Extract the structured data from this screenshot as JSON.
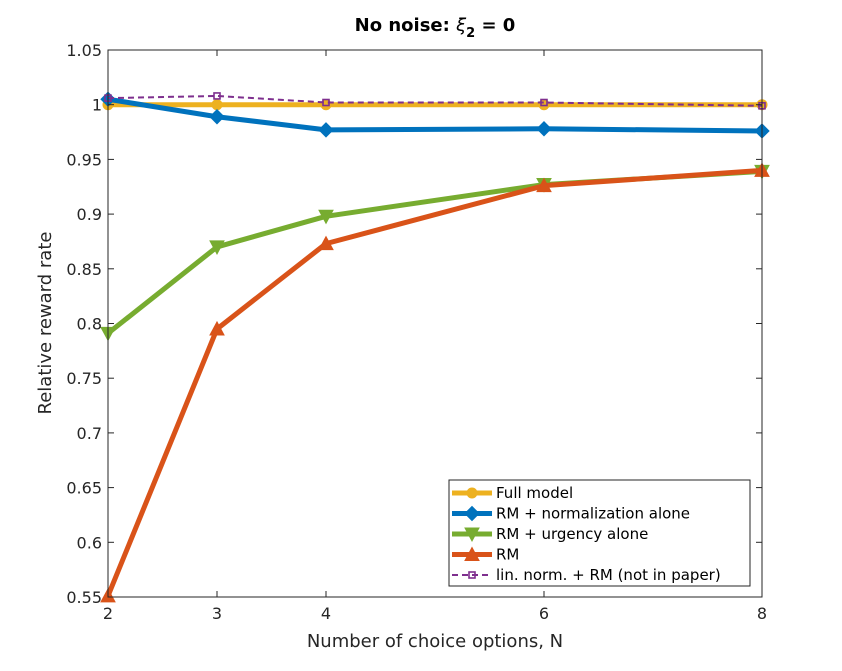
{
  "chart_data": {
    "type": "line",
    "title_prefix": "No noise: ",
    "title_symbol": "ξ",
    "title_subscript": "2",
    "title_suffix": " = 0",
    "xlabel": "Number of choice options, N",
    "ylabel": "Relative reward rate",
    "x": [
      2,
      3,
      4,
      6,
      8
    ],
    "xlim": [
      2,
      8
    ],
    "ylim": [
      0.55,
      1.05
    ],
    "xticks": [
      "2",
      "3",
      "4",
      "6",
      "8"
    ],
    "yticks": [
      "0.55",
      "0.6",
      "0.65",
      "0.7",
      "0.75",
      "0.8",
      "0.85",
      "0.9",
      "0.95",
      "1",
      "1.05"
    ],
    "legend_position": "bottom-right",
    "grid": false,
    "series": [
      {
        "name": "Full model",
        "color": "#EDB120",
        "marker": "circle",
        "style": "solid",
        "values": [
          1.0,
          1.0,
          1.0,
          1.0,
          1.0
        ]
      },
      {
        "name": "RM + normalization alone",
        "color": "#0072BD",
        "marker": "diamond",
        "style": "solid",
        "values": [
          1.005,
          0.989,
          0.977,
          0.978,
          0.976
        ]
      },
      {
        "name": "RM + urgency alone",
        "color": "#77AC30",
        "marker": "triangle-down",
        "style": "solid",
        "values": [
          0.791,
          0.87,
          0.898,
          0.927,
          0.939
        ]
      },
      {
        "name": "RM",
        "color": "#D95319",
        "marker": "triangle-up",
        "style": "solid",
        "values": [
          0.551,
          0.795,
          0.873,
          0.926,
          0.94
        ]
      },
      {
        "name": "lin. norm. + RM (not in paper)",
        "color": "#7E2F8E",
        "marker": "square",
        "style": "dashed",
        "values": [
          1.006,
          1.008,
          1.002,
          1.002,
          0.999
        ]
      }
    ]
  }
}
